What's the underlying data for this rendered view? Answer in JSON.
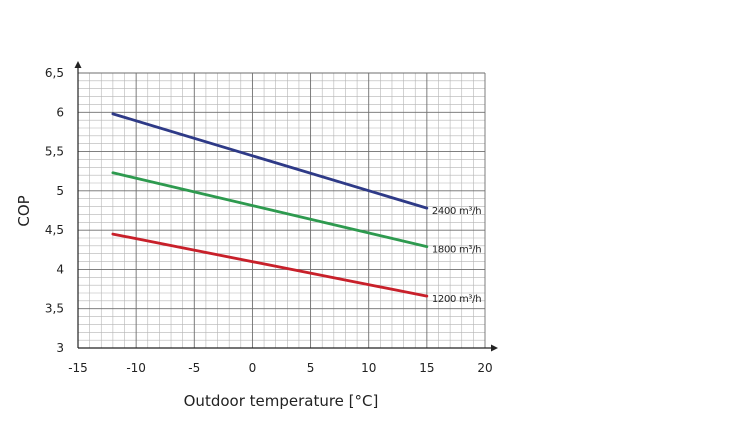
{
  "chart_data": {
    "type": "line",
    "title": "",
    "xlabel": "Outdoor temperature [°C]",
    "ylabel": "COP",
    "xlim": [
      -15,
      20
    ],
    "ylim": [
      3,
      6.5
    ],
    "x_ticks": [
      "-15",
      "-10",
      "-5",
      "0",
      "5",
      "10",
      "15",
      "20"
    ],
    "y_ticks": [
      "3",
      "3,5",
      "4",
      "4,5",
      "5",
      "5,5",
      "6",
      "6,5"
    ],
    "grid": true,
    "series": [
      {
        "name": "2400 m³/h",
        "color": "#2e3a87",
        "x": [
          -12,
          15
        ],
        "y": [
          5.98,
          4.78
        ]
      },
      {
        "name": "1800 m³/h",
        "color": "#2e9a4f",
        "x": [
          -12,
          15
        ],
        "y": [
          5.23,
          4.29
        ]
      },
      {
        "name": "1200 m³/h",
        "color": "#c8202a",
        "x": [
          -12,
          15
        ],
        "y": [
          4.45,
          3.66
        ]
      }
    ]
  }
}
